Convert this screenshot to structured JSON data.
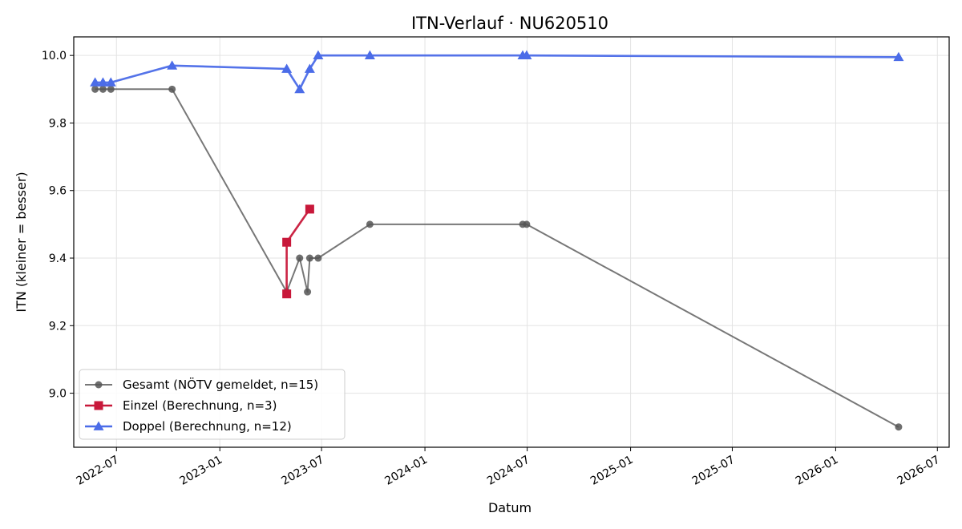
{
  "chart_data": {
    "type": "line",
    "title": "ITN-Verlauf · NU620510",
    "xlabel": "Datum",
    "ylabel": "ITN  (kleiner = besser)",
    "xlim": [
      "2022-04-16",
      "2026-07-22"
    ],
    "ylim": [
      8.84,
      10.055
    ],
    "x_ticks": [
      "2022-07",
      "2023-01",
      "2023-07",
      "2024-01",
      "2024-07",
      "2025-01",
      "2025-07",
      "2026-01",
      "2026-07"
    ],
    "y_ticks": [
      9.0,
      9.2,
      9.4,
      9.6,
      9.8,
      10.0
    ],
    "y_tick_labels": [
      "9.0",
      "9.2",
      "9.4",
      "9.6",
      "9.8",
      "10.0"
    ],
    "grid": true,
    "legend_position": "lower-left",
    "series": [
      {
        "name": "Gesamt (NÖTV gemeldet, n=15)",
        "color": "#555555",
        "marker": "circle",
        "points": [
          {
            "x": "2022-05-24",
            "y": 9.9
          },
          {
            "x": "2022-06-07",
            "y": 9.9
          },
          {
            "x": "2022-06-21",
            "y": 9.9
          },
          {
            "x": "2022-10-08",
            "y": 9.9
          },
          {
            "x": "2023-04-30",
            "y": 9.3
          },
          {
            "x": "2023-05-23",
            "y": 9.4
          },
          {
            "x": "2023-06-06",
            "y": 9.3
          },
          {
            "x": "2023-06-10",
            "y": 9.4
          },
          {
            "x": "2023-06-25",
            "y": 9.4
          },
          {
            "x": "2023-09-25",
            "y": 9.5
          },
          {
            "x": "2024-06-23",
            "y": 9.5
          },
          {
            "x": "2024-06-30",
            "y": 9.5
          },
          {
            "x": "2026-04-23",
            "y": 8.9
          }
        ]
      },
      {
        "name": "Einzel (Berechnung, n=3)",
        "color": "#c8183a",
        "marker": "square",
        "points": [
          {
            "x": "2023-04-30",
            "y": 9.294
          },
          {
            "x": "2023-04-30",
            "y": 9.447
          },
          {
            "x": "2023-06-10",
            "y": 9.545
          }
        ]
      },
      {
        "name": "Doppel (Berechnung, n=12)",
        "color": "#4b6ce8",
        "marker": "triangle",
        "points": [
          {
            "x": "2022-05-24",
            "y": 9.92
          },
          {
            "x": "2022-06-07",
            "y": 9.92
          },
          {
            "x": "2022-06-21",
            "y": 9.92
          },
          {
            "x": "2022-10-08",
            "y": 9.97
          },
          {
            "x": "2023-04-30",
            "y": 9.96
          },
          {
            "x": "2023-05-23",
            "y": 9.9
          },
          {
            "x": "2023-06-10",
            "y": 9.96
          },
          {
            "x": "2023-06-25",
            "y": 10.0
          },
          {
            "x": "2023-09-25",
            "y": 10.0
          },
          {
            "x": "2024-06-23",
            "y": 10.0
          },
          {
            "x": "2024-06-30",
            "y": 10.0
          },
          {
            "x": "2026-04-23",
            "y": 9.995
          }
        ]
      }
    ]
  }
}
